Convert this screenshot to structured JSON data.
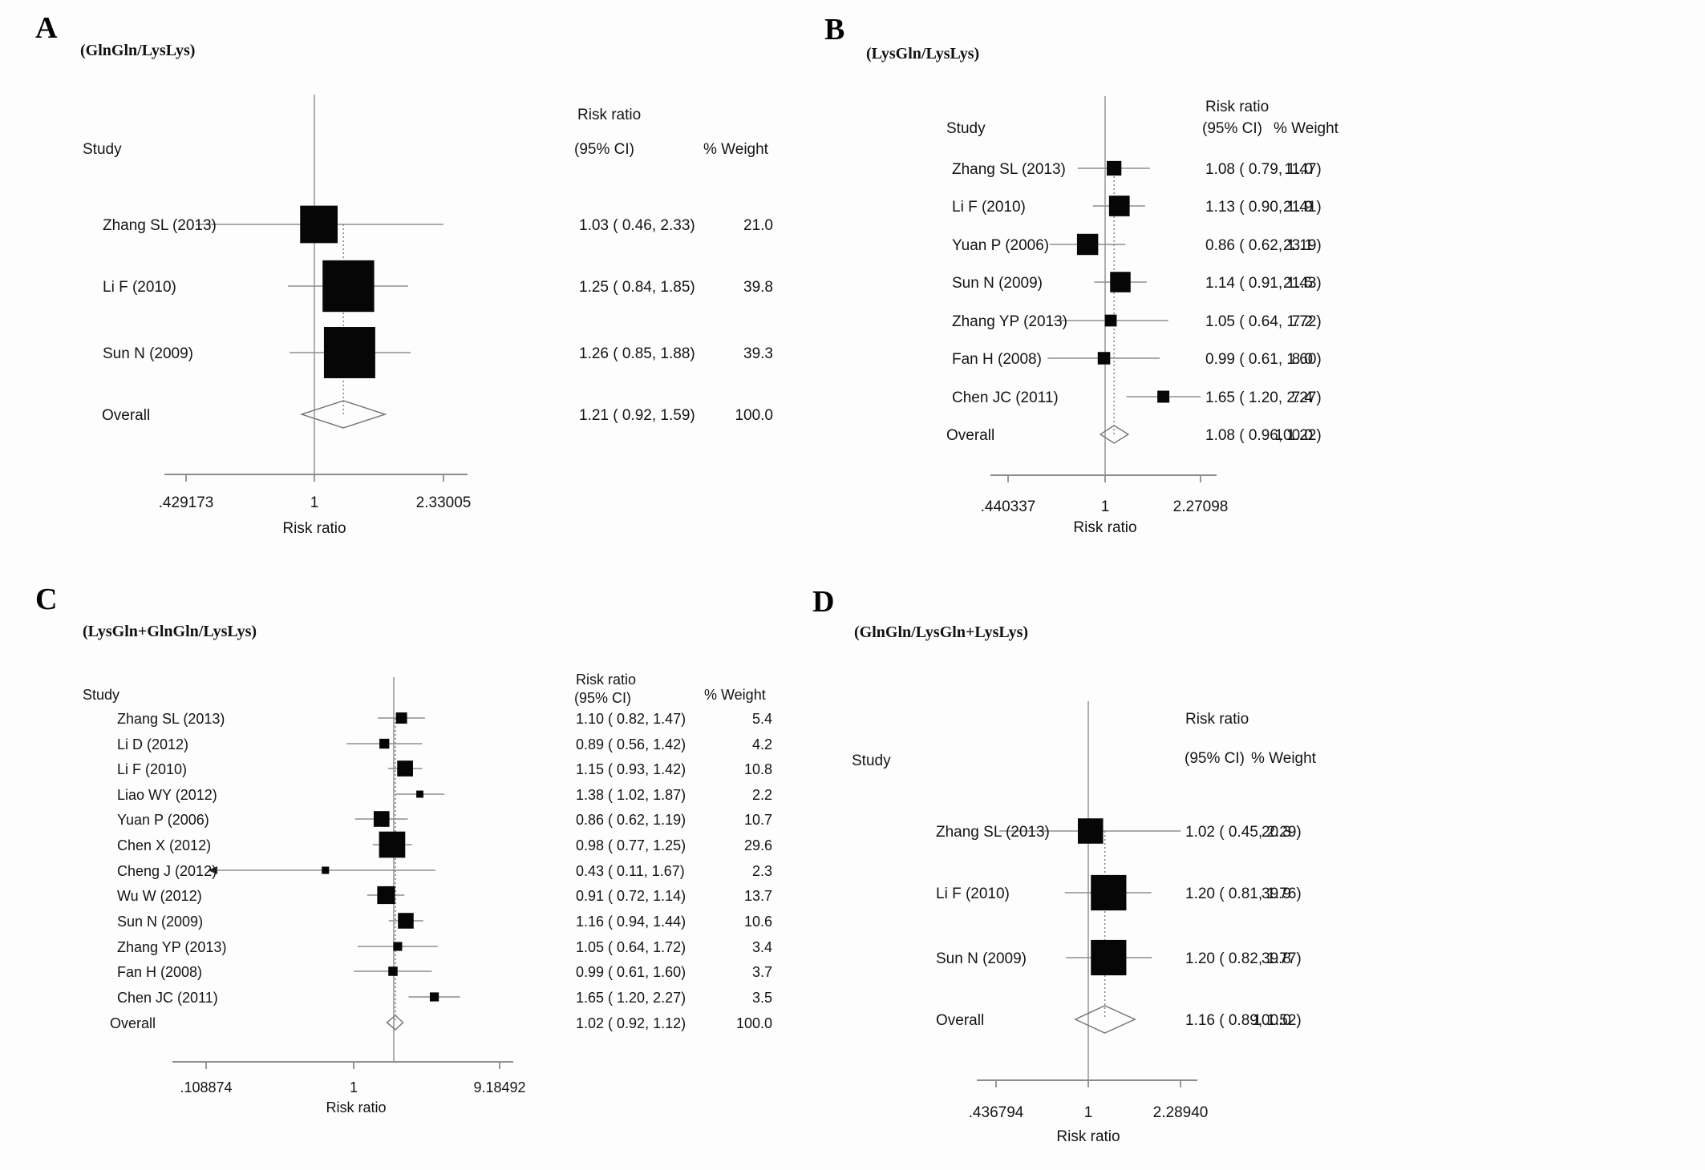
{
  "figure": {
    "headers": {
      "study": "Study",
      "risk_ratio_line1": "Risk ratio",
      "risk_ratio_line2": "(95% CI)",
      "weight": "% Weight"
    }
  },
  "chart_data": [
    {
      "type": "forest",
      "panel_letter": "A",
      "title": "(GlnGln/LysLys)",
      "xlabel": "Risk ratio",
      "axis_tick_labels": [
        ".429173",
        "1",
        "2.33005"
      ],
      "axis_range": [
        0.429173,
        2.33005
      ],
      "studies": [
        {
          "name": "Zhang SL (2013)",
          "estimate": 1.03,
          "ci_low": 0.46,
          "ci_high": 2.33,
          "ci_text": "1.03 ( 0.46, 2.33)",
          "weight": 21.0,
          "weight_text": "21.0"
        },
        {
          "name": "Li F (2010)",
          "estimate": 1.25,
          "ci_low": 0.84,
          "ci_high": 1.85,
          "ci_text": "1.25 ( 0.84, 1.85)",
          "weight": 39.8,
          "weight_text": "39.8"
        },
        {
          "name": "Sun N  (2009)",
          "estimate": 1.26,
          "ci_low": 0.85,
          "ci_high": 1.88,
          "ci_text": "1.26 ( 0.85, 1.88)",
          "weight": 39.3,
          "weight_text": "39.3"
        }
      ],
      "overall": {
        "label": "Overall",
        "estimate": 1.21,
        "ci_low": 0.92,
        "ci_high": 1.59,
        "ci_text": "1.21 ( 0.92, 1.59)",
        "weight_text": "100.0"
      }
    },
    {
      "type": "forest",
      "panel_letter": "B",
      "title": "(LysGln/LysLys)",
      "xlabel": "Risk ratio",
      "axis_tick_labels": [
        ".440337",
        "1",
        "2.27098"
      ],
      "axis_range": [
        0.440337,
        2.27098
      ],
      "studies": [
        {
          "name": "Zhang SL (2013)",
          "estimate": 1.08,
          "ci_low": 0.79,
          "ci_high": 1.47,
          "ci_text": "1.08 ( 0.79, 1.47)",
          "weight": 11.0,
          "weight_text": "11.0"
        },
        {
          "name": "Li F (2010)",
          "estimate": 1.13,
          "ci_low": 0.9,
          "ci_high": 1.41,
          "ci_text": "1.13 ( 0.90, 1.41)",
          "weight": 21.9,
          "weight_text": "21.9"
        },
        {
          "name": "Yuan P (2006)",
          "estimate": 0.86,
          "ci_low": 0.62,
          "ci_high": 1.19,
          "ci_text": "0.86 ( 0.62, 1.19)",
          "weight": 23.1,
          "weight_text": "23.1"
        },
        {
          "name": "Sun N (2009)",
          "estimate": 1.14,
          "ci_low": 0.91,
          "ci_high": 1.43,
          "ci_text": "1.14 ( 0.91, 1.43)",
          "weight": 21.5,
          "weight_text": "21.5"
        },
        {
          "name": "Zhang YP (2013)",
          "estimate": 1.05,
          "ci_low": 0.64,
          "ci_high": 1.72,
          "ci_text": "1.05 ( 0.64, 1.72)",
          "weight": 7.2,
          "weight_text": "7.2"
        },
        {
          "name": "Fan H (2008)",
          "estimate": 0.99,
          "ci_low": 0.61,
          "ci_high": 1.6,
          "ci_text": "0.99 ( 0.61, 1.60)",
          "weight": 8.0,
          "weight_text": "8.0"
        },
        {
          "name": "Chen JC (2011)",
          "estimate": 1.65,
          "ci_low": 1.2,
          "ci_high": 2.27,
          "ci_text": "1.65 ( 1.20, 2.27)",
          "weight": 7.4,
          "weight_text": "7.4"
        }
      ],
      "overall": {
        "label": "Overall",
        "estimate": 1.08,
        "ci_low": 0.96,
        "ci_high": 1.22,
        "ci_text": "1.08 ( 0.96, 1.22)",
        "weight_text": "100.0"
      }
    },
    {
      "type": "forest",
      "panel_letter": "C",
      "title": "(LysGln+GlnGln/LysLys)",
      "xlabel": "Risk ratio",
      "axis_tick_labels": [
        ".108874",
        "1",
        "9.18492"
      ],
      "axis_range": [
        0.108874,
        9.18492
      ],
      "studies": [
        {
          "name": "Zhang SL (2013)",
          "estimate": 1.1,
          "ci_low": 0.82,
          "ci_high": 1.47,
          "ci_text": "1.10 ( 0.82, 1.47)",
          "weight": 5.4,
          "weight_text": "5.4"
        },
        {
          "name": "Li D  (2012)",
          "estimate": 0.89,
          "ci_low": 0.56,
          "ci_high": 1.42,
          "ci_text": "0.89 ( 0.56, 1.42)",
          "weight": 4.2,
          "weight_text": "4.2"
        },
        {
          "name": "Li F (2010)",
          "estimate": 1.15,
          "ci_low": 0.93,
          "ci_high": 1.42,
          "ci_text": "1.15 ( 0.93, 1.42)",
          "weight": 10.8,
          "weight_text": "10.8"
        },
        {
          "name": "Liao WY (2012)",
          "estimate": 1.38,
          "ci_low": 1.02,
          "ci_high": 1.87,
          "ci_text": "1.38 ( 1.02, 1.87)",
          "weight": 2.2,
          "weight_text": "2.2"
        },
        {
          "name": "Yuan P (2006)",
          "estimate": 0.86,
          "ci_low": 0.62,
          "ci_high": 1.19,
          "ci_text": "0.86 ( 0.62, 1.19)",
          "weight": 10.7,
          "weight_text": "10.7"
        },
        {
          "name": "Chen X (2012)",
          "estimate": 0.98,
          "ci_low": 0.77,
          "ci_high": 1.25,
          "ci_text": "0.98 ( 0.77, 1.25)",
          "weight": 29.6,
          "weight_text": "29.6"
        },
        {
          "name": "Cheng J (2012)",
          "estimate": 0.43,
          "ci_low": 0.11,
          "ci_high": 1.67,
          "ci_text": "0.43 ( 0.11, 1.67)",
          "weight": 2.3,
          "weight_text": "2.3",
          "ci_low_arrow": true
        },
        {
          "name": "Wu W (2012)",
          "estimate": 0.91,
          "ci_low": 0.72,
          "ci_high": 1.14,
          "ci_text": "0.91 ( 0.72, 1.14)",
          "weight": 13.7,
          "weight_text": "13.7"
        },
        {
          "name": "Sun N (2009)",
          "estimate": 1.16,
          "ci_low": 0.94,
          "ci_high": 1.44,
          "ci_text": "1.16 ( 0.94, 1.44)",
          "weight": 10.6,
          "weight_text": "10.6"
        },
        {
          "name": "Zhang YP (2013)",
          "estimate": 1.05,
          "ci_low": 0.64,
          "ci_high": 1.72,
          "ci_text": "1.05 ( 0.64, 1.72)",
          "weight": 3.4,
          "weight_text": "3.4"
        },
        {
          "name": "Fan H (2008)",
          "estimate": 0.99,
          "ci_low": 0.61,
          "ci_high": 1.6,
          "ci_text": "0.99 ( 0.61, 1.60)",
          "weight": 3.7,
          "weight_text": "3.7"
        },
        {
          "name": "Chen JC (2011)",
          "estimate": 1.65,
          "ci_low": 1.2,
          "ci_high": 2.27,
          "ci_text": "1.65 ( 1.20, 2.27)",
          "weight": 3.5,
          "weight_text": "3.5"
        }
      ],
      "overall": {
        "label": "Overall",
        "estimate": 1.02,
        "ci_low": 0.92,
        "ci_high": 1.12,
        "ci_text": "1.02 ( 0.92, 1.12)",
        "weight_text": "100.0"
      }
    },
    {
      "type": "forest",
      "panel_letter": "D",
      "title": "(GlnGln/LysGln+LysLys)",
      "xlabel": "Risk ratio",
      "axis_tick_labels": [
        ".436794",
        "1",
        "2.28940"
      ],
      "axis_range": [
        0.436794,
        2.2894
      ],
      "studies": [
        {
          "name": "Zhang SL (2013)",
          "estimate": 1.02,
          "ci_low": 0.45,
          "ci_high": 2.29,
          "ci_text": "1.02 ( 0.45, 2.29)",
          "weight": 20.3,
          "weight_text": "20.3"
        },
        {
          "name": "Li F (2010)",
          "estimate": 1.2,
          "ci_low": 0.81,
          "ci_high": 1.76,
          "ci_text": "1.20 ( 0.81, 1.76)",
          "weight": 39.9,
          "weight_text": "39.9"
        },
        {
          "name": "Sun N (2009)",
          "estimate": 1.2,
          "ci_low": 0.82,
          "ci_high": 1.77,
          "ci_text": "1.20 ( 0.82, 1.77)",
          "weight": 39.8,
          "weight_text": "39.8"
        }
      ],
      "overall": {
        "label": "Overall",
        "estimate": 1.16,
        "ci_low": 0.89,
        "ci_high": 1.52,
        "ci_text": "1.16 ( 0.89, 1.52)",
        "weight_text": "100.0"
      }
    }
  ]
}
